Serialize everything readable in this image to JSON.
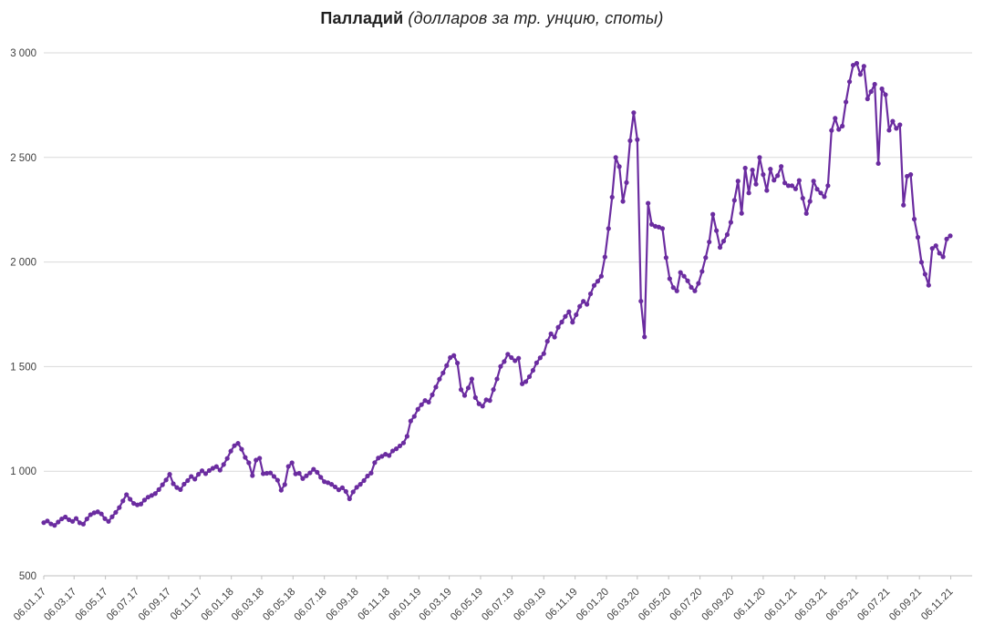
{
  "title": {
    "main": "Палладий",
    "subtitle": "(долларов за тр. унцию, споты)"
  },
  "chart_data": {
    "type": "line",
    "title": "Палладий (долларов за тр. унцию, споты)",
    "frequency": "weekly",
    "legend": "none",
    "grid": "horizontal",
    "marker": "circle",
    "line_color": "#6B2CA0",
    "grid_color": "#D9D9D9",
    "axis_color": "#BFBFBF",
    "label_color": "#404040",
    "ylim": [
      500,
      3000
    ],
    "y_tick_values": [
      500,
      1000,
      1500,
      2000,
      2500,
      3000
    ],
    "y_tick_labels": [
      "500",
      "1 000",
      "1 500",
      "2 000",
      "2 500",
      "3 000"
    ],
    "x_tick_labels": [
      "06.01.17",
      "06.03.17",
      "06.05.17",
      "06.07.17",
      "06.09.17",
      "06.11.17",
      "06.01.18",
      "06.03.18",
      "06.05.18",
      "06.07.18",
      "06.09.18",
      "06.11.18",
      "06.01.19",
      "06.03.19",
      "06.05.19",
      "06.07.19",
      "06.09.19",
      "06.11.19",
      "06.01.20",
      "06.03.20",
      "06.05.20",
      "06.07.20",
      "06.09.20",
      "06.11.20",
      "06.01.21",
      "06.03.21",
      "06.05.21",
      "06.07.21",
      "06.09.21",
      "06.11.21"
    ],
    "values": [
      754,
      762,
      748,
      741,
      757,
      772,
      781,
      768,
      760,
      774,
      753,
      747,
      772,
      792,
      801,
      806,
      796,
      773,
      760,
      782,
      803,
      826,
      858,
      888,
      866,
      846,
      839,
      843,
      862,
      876,
      884,
      893,
      912,
      935,
      958,
      985,
      940,
      922,
      912,
      938,
      955,
      975,
      962,
      985,
      1002,
      988,
      1003,
      1014,
      1022,
      1005,
      1032,
      1061,
      1096,
      1122,
      1133,
      1105,
      1066,
      1040,
      979,
      1053,
      1062,
      988,
      990,
      992,
      975,
      957,
      909,
      936,
      1023,
      1040,
      987,
      990,
      965,
      978,
      992,
      1009,
      995,
      971,
      950,
      945,
      937,
      925,
      911,
      921,
      903,
      868,
      901,
      923,
      937,
      955,
      977,
      991,
      1041,
      1063,
      1071,
      1081,
      1075,
      1097,
      1107,
      1121,
      1135,
      1167,
      1240,
      1262,
      1296,
      1318,
      1338,
      1330,
      1365,
      1402,
      1440,
      1470,
      1505,
      1543,
      1553,
      1517,
      1390,
      1362,
      1398,
      1441,
      1352,
      1322,
      1311,
      1341,
      1338,
      1390,
      1441,
      1501,
      1524,
      1559,
      1543,
      1528,
      1540,
      1418,
      1428,
      1452,
      1482,
      1518,
      1542,
      1562,
      1621,
      1657,
      1641,
      1688,
      1713,
      1740,
      1762,
      1712,
      1748,
      1788,
      1812,
      1798,
      1848,
      1888,
      1908,
      1932,
      2024,
      2160,
      2310,
      2500,
      2456,
      2290,
      2380,
      2580,
      2714,
      2585,
      1813,
      1642,
      2281,
      2180,
      2171,
      2167,
      2160,
      2021,
      1920,
      1878,
      1862,
      1950,
      1932,
      1910,
      1879,
      1862,
      1898,
      1955,
      2021,
      2096,
      2228,
      2150,
      2070,
      2100,
      2131,
      2190,
      2295,
      2387,
      2233,
      2449,
      2330,
      2440,
      2372,
      2500,
      2418,
      2342,
      2444,
      2391,
      2413,
      2457,
      2378,
      2365,
      2365,
      2350,
      2390,
      2305,
      2232,
      2290,
      2387,
      2348,
      2330,
      2312,
      2365,
      2629,
      2687,
      2634,
      2650,
      2765,
      2862,
      2941,
      2950,
      2897,
      2936,
      2780,
      2815,
      2850,
      2471,
      2828,
      2800,
      2630,
      2673,
      2639,
      2656,
      2272,
      2410,
      2418,
      2205,
      2118,
      1999,
      1942,
      1889,
      2065,
      2078,
      2042,
      2025,
      2110,
      2125
    ]
  }
}
